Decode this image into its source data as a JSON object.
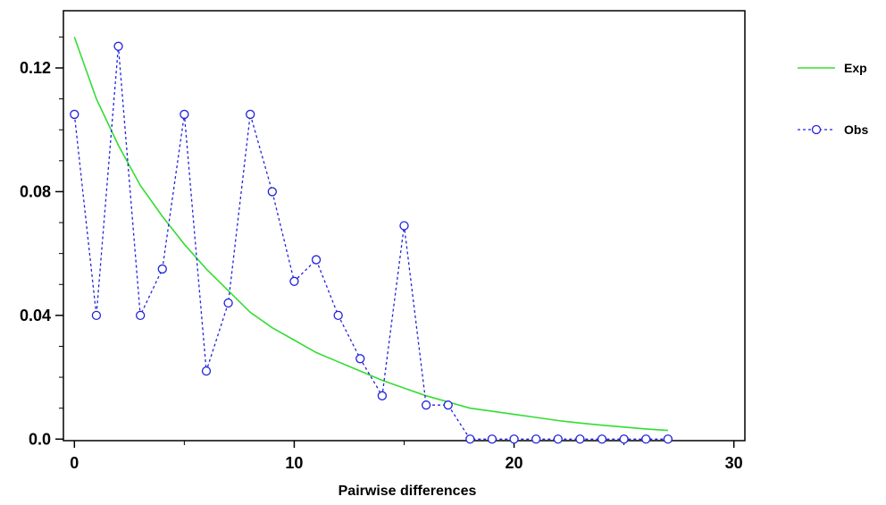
{
  "chart_data": {
    "type": "line",
    "xlabel": "Pairwise differences",
    "ylabel": "",
    "xlim": [
      -0.5,
      30.5
    ],
    "ylim": [
      -0.0005,
      0.1385
    ],
    "x_ticks": [
      0,
      10,
      20,
      30
    ],
    "y_ticks": [
      0.0,
      0.04,
      0.08,
      0.12
    ],
    "x_tick_labels": [
      "0",
      "10",
      "20",
      "30"
    ],
    "y_tick_labels": [
      "0.0",
      "0.04",
      "0.08",
      "0.12"
    ],
    "legend_position": "right",
    "grid": false,
    "series": [
      {
        "name": "Exp",
        "color": "#33dd33",
        "style": "solid",
        "marker": "none",
        "x": [
          0,
          1,
          2,
          3,
          4,
          5,
          6,
          7,
          8,
          9,
          10,
          11,
          12,
          13,
          14,
          15,
          16,
          17,
          18,
          19,
          20,
          21,
          22,
          23,
          24,
          25,
          26,
          27
        ],
        "values": [
          0.13,
          0.11,
          0.095,
          0.082,
          0.072,
          0.063,
          0.055,
          0.048,
          0.041,
          0.036,
          0.032,
          0.028,
          0.025,
          0.022,
          0.019,
          0.0165,
          0.014,
          0.012,
          0.01,
          0.009,
          0.008,
          0.007,
          0.006,
          0.0052,
          0.0045,
          0.0039,
          0.0033,
          0.0028
        ]
      },
      {
        "name": "Obs",
        "color": "#2222dd",
        "style": "dashed",
        "marker": "circle",
        "x": [
          0,
          1,
          2,
          3,
          4,
          5,
          6,
          7,
          8,
          9,
          10,
          11,
          12,
          13,
          14,
          15,
          16,
          17,
          18,
          19,
          20,
          21,
          22,
          23,
          24,
          25,
          26,
          27
        ],
        "values": [
          0.105,
          0.04,
          0.127,
          0.04,
          0.055,
          0.105,
          0.022,
          0.044,
          0.105,
          0.08,
          0.051,
          0.058,
          0.04,
          0.026,
          0.014,
          0.069,
          0.011,
          0.011,
          0.0,
          0.0,
          0.0,
          0.0,
          0.0,
          0.0,
          0.0,
          0.0,
          0.0,
          0.0
        ]
      }
    ]
  }
}
